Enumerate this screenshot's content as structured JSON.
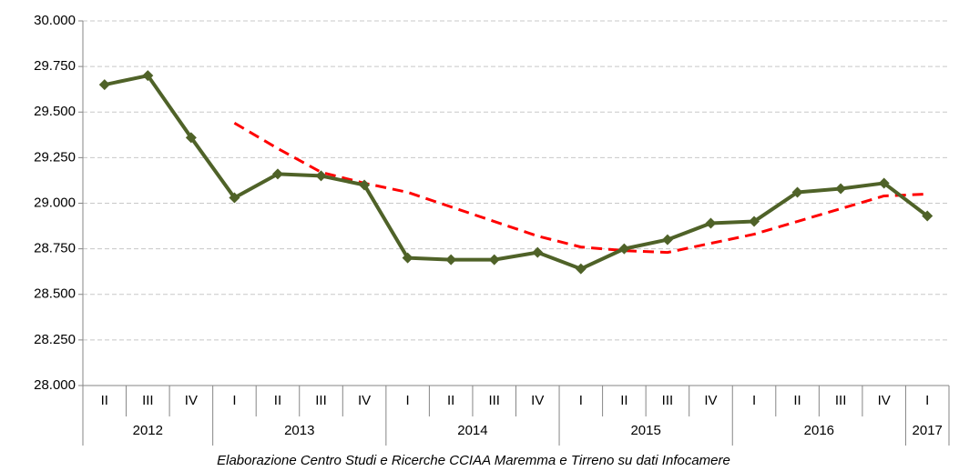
{
  "chart_data": {
    "type": "line",
    "categories": [
      "II",
      "III",
      "IV",
      "I",
      "II",
      "III",
      "IV",
      "I",
      "II",
      "III",
      "IV",
      "I",
      "II",
      "III",
      "IV",
      "I",
      "II",
      "III",
      "IV",
      "I"
    ],
    "years": [
      "2012",
      null,
      null,
      "2013",
      null,
      null,
      null,
      "2014",
      null,
      null,
      null,
      "2015",
      null,
      null,
      null,
      "2016",
      null,
      null,
      null,
      "2017"
    ],
    "series": [
      {
        "color": "#4F6228",
        "dash": false,
        "marker": "diamond",
        "values": [
          29650,
          29700,
          29360,
          29030,
          29160,
          29150,
          29100,
          28700,
          28690,
          28690,
          28730,
          28640,
          28750,
          28800,
          28890,
          28900,
          29060,
          29080,
          29110,
          28930
        ]
      },
      {
        "color": "#FF0000",
        "dash": true,
        "marker": "none",
        "values": [
          null,
          null,
          null,
          29440,
          29300,
          29170,
          29110,
          29060,
          28980,
          28900,
          28820,
          28760,
          28740,
          28730,
          28780,
          28830,
          28900,
          28970,
          29040,
          29050
        ]
      }
    ],
    "ylim": [
      28000,
      30000
    ],
    "yticks": [
      {
        "value": 28000,
        "label": "28.000"
      },
      {
        "value": 28250,
        "label": "28.250"
      },
      {
        "value": 28500,
        "label": "28.500"
      },
      {
        "value": 28750,
        "label": "28.750"
      },
      {
        "value": 29000,
        "label": "29.000"
      },
      {
        "value": 29250,
        "label": "29.250"
      },
      {
        "value": 29500,
        "label": "29.500"
      },
      {
        "value": 29750,
        "label": "29.750"
      },
      {
        "value": 30000,
        "label": "30.000"
      }
    ],
    "grid": true,
    "source": "Elaborazione Centro Studi e Ricerche CCIAA Maremma e Tirreno su dati Infocamere"
  }
}
